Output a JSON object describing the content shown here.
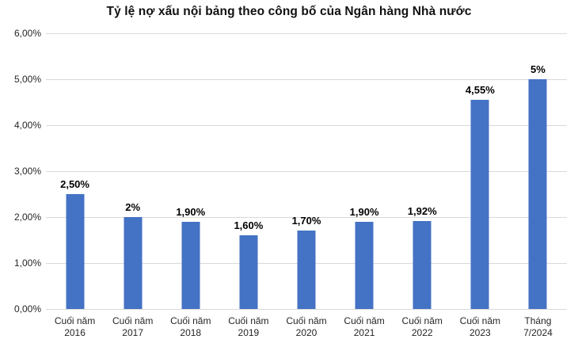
{
  "chart_data": {
    "type": "bar",
    "title": "Tỷ lệ nợ xấu nội bảng theo công bố của Ngân hàng Nhà nước",
    "categories": [
      "Cuối năm\n2016",
      "Cuối năm\n2017",
      "Cuối năm\n2018",
      "Cuối năm\n2019",
      "Cuối năm\n2020",
      "Cuối năm\n2021",
      "Cuối năm\n2022",
      "Cuối năm\n2023",
      "Tháng\n7/2024"
    ],
    "values": [
      2.5,
      2.0,
      1.9,
      1.6,
      1.7,
      1.9,
      1.92,
      4.55,
      5.0
    ],
    "value_labels": [
      "2,50%",
      "2%",
      "1,90%",
      "1,60%",
      "1,70%",
      "1,90%",
      "1,92%",
      "4,55%",
      "5%"
    ],
    "xlabel": "",
    "ylabel": "",
    "ylim": [
      0,
      6
    ],
    "y_ticks": [
      "0,00%",
      "1,00%",
      "2,00%",
      "3,00%",
      "4,00%",
      "5,00%",
      "6,00%"
    ],
    "grid": true,
    "legend": "none",
    "bar_color": "#4472C4",
    "gridline_color": "#D9D9D9"
  }
}
